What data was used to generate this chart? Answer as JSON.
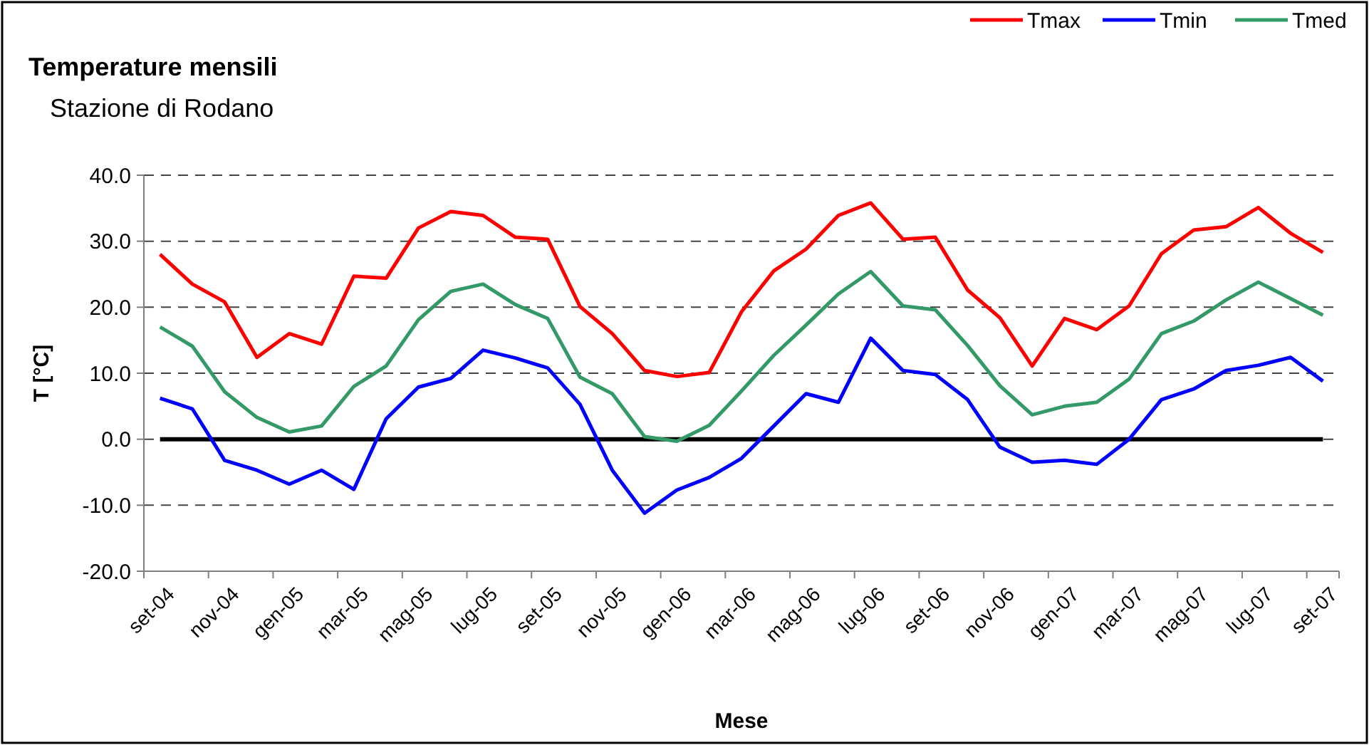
{
  "chart_data": {
    "type": "line",
    "title": "Temperature mensili",
    "subtitle": "Stazione di Rodano",
    "xlabel": "Mese",
    "ylabel": "T [°C]",
    "categories": [
      "set-04",
      null,
      "nov-04",
      null,
      "gen-05",
      null,
      "mar-05",
      null,
      "mag-05",
      null,
      "lug-05",
      null,
      "set-05",
      null,
      "nov-05",
      null,
      "gen-06",
      null,
      "mar-06",
      null,
      "mag-06",
      null,
      "lug-06",
      null,
      "set-06",
      null,
      "nov-06",
      null,
      "gen-07",
      null,
      "mar-07",
      null,
      "mag-07",
      null,
      "lug-07",
      null,
      "set-07"
    ],
    "series": [
      {
        "name": "Tmax",
        "color": "#ff0000",
        "values": [
          28.0,
          23.5,
          20.8,
          12.4,
          16.0,
          14.4,
          24.7,
          24.4,
          32.0,
          34.5,
          33.9,
          30.6,
          30.3,
          20.1,
          16.0,
          10.4,
          9.5,
          10.1,
          19.3,
          25.5,
          28.8,
          33.9,
          35.8,
          30.3,
          30.6,
          22.6,
          18.4,
          11.1,
          18.3,
          16.6,
          20.2,
          28.1,
          31.7,
          32.2,
          35.1,
          31.2,
          28.3
        ]
      },
      {
        "name": "Tmin",
        "color": "#0000ff",
        "values": [
          6.2,
          4.6,
          -3.2,
          -4.7,
          -6.8,
          -4.7,
          -7.6,
          3.1,
          7.9,
          9.2,
          13.5,
          12.3,
          10.8,
          5.3,
          -4.7,
          -11.2,
          -7.7,
          -5.8,
          -2.9,
          2.0,
          6.9,
          5.6,
          15.3,
          10.4,
          9.8,
          6.0,
          -1.2,
          -3.5,
          -3.2,
          -3.8,
          0.0,
          6.0,
          7.6,
          10.4,
          11.2,
          12.4,
          8.8
        ]
      },
      {
        "name": "Tmed",
        "color": "#339966",
        "values": [
          17.0,
          14.1,
          7.2,
          3.3,
          1.1,
          2.0,
          8.0,
          11.1,
          18.1,
          22.4,
          23.5,
          20.4,
          18.3,
          9.4,
          6.9,
          0.4,
          -0.3,
          2.1,
          7.3,
          12.7,
          17.3,
          22.0,
          25.4,
          20.2,
          19.6,
          14.2,
          8.1,
          3.7,
          5.0,
          5.6,
          9.1,
          16.0,
          17.9,
          21.1,
          23.8,
          21.3,
          18.8
        ]
      }
    ],
    "ylim": [
      -20,
      40
    ],
    "yticks": [
      {
        "value": -20,
        "label": "-20.0"
      },
      {
        "value": -10,
        "label": "-10.0"
      },
      {
        "value": 0,
        "label": "0.0"
      },
      {
        "value": 10,
        "label": "10.0"
      },
      {
        "value": 20,
        "label": "20.0"
      },
      {
        "value": 30,
        "label": "30.0"
      },
      {
        "value": 40,
        "label": "40.0"
      }
    ],
    "grid": "y",
    "legend": "top right",
    "marker": "none",
    "line_style": "solid",
    "ref_lines": [
      {
        "axis": "y",
        "value": 0,
        "color": "#000000",
        "line_style": "solid"
      }
    ]
  }
}
